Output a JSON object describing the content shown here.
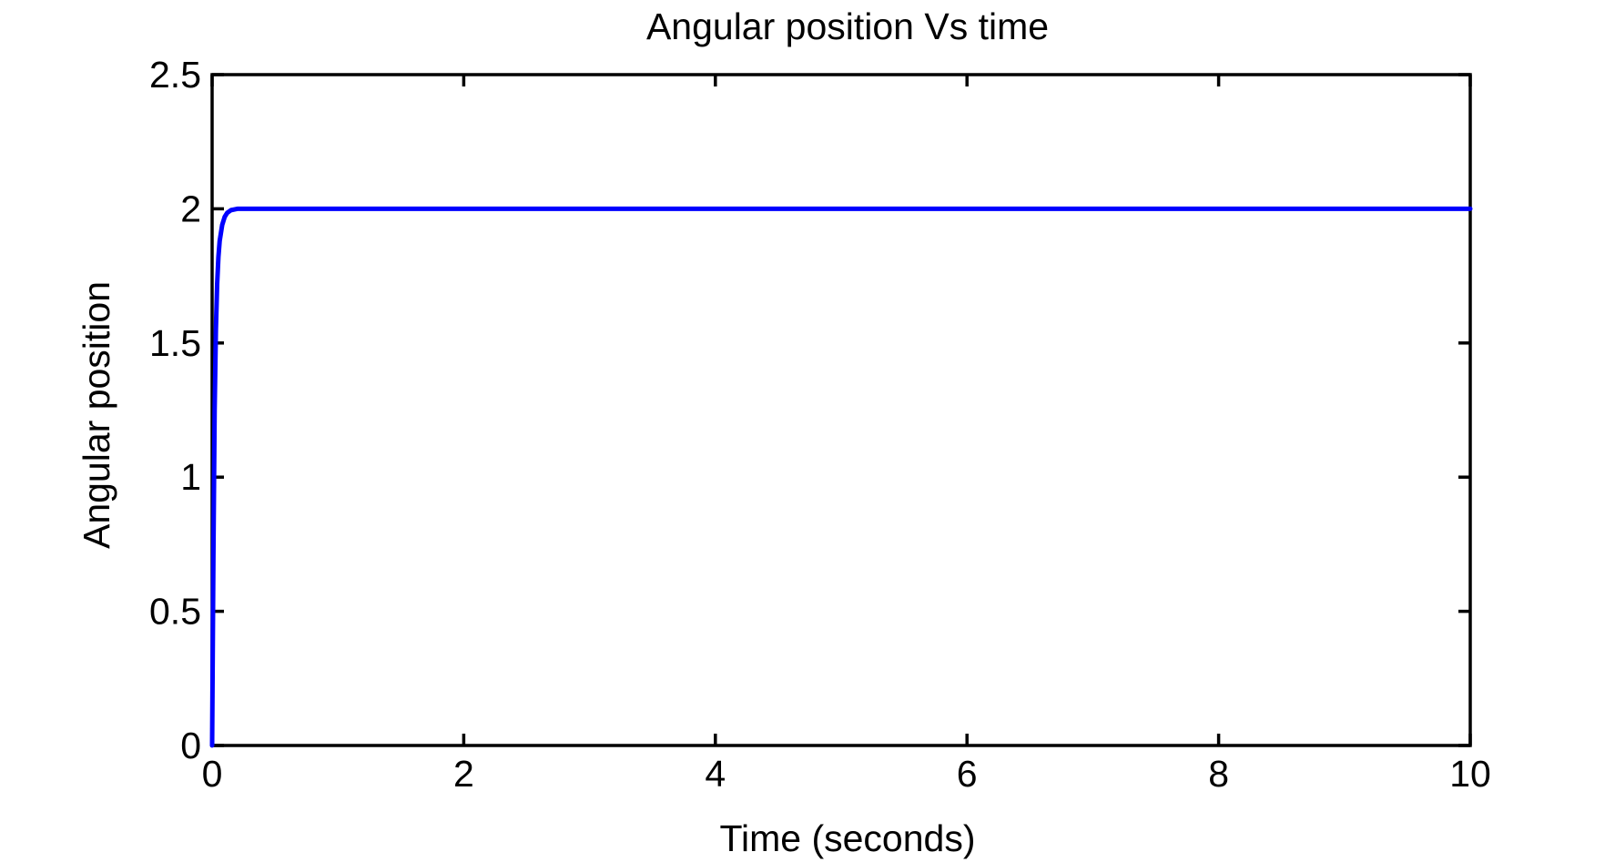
{
  "chart_data": {
    "type": "line",
    "title": "Angular position Vs time",
    "xlabel": "Time (seconds)",
    "ylabel": "Angular position",
    "xlim": [
      0,
      10
    ],
    "ylim": [
      0,
      2.5
    ],
    "x_ticks": [
      0,
      2,
      4,
      6,
      8,
      10
    ],
    "y_ticks": [
      0,
      0.5,
      1,
      1.5,
      2,
      2.5
    ],
    "x_tick_labels": [
      "0",
      "2",
      "4",
      "6",
      "8",
      "10"
    ],
    "y_tick_labels": [
      "0",
      "0.5",
      "1",
      "1.5",
      "2",
      "2.5"
    ],
    "grid": false,
    "legend": "none",
    "series": [
      {
        "color": "#0000ff",
        "x": [
          0,
          0.01,
          0.02,
          0.03,
          0.04,
          0.05,
          0.06,
          0.08,
          0.1,
          0.12,
          0.15,
          0.2,
          0.25,
          0.3,
          0.5,
          1,
          2,
          4,
          6,
          8,
          10
        ],
        "y": [
          0,
          0.7,
          1.25,
          1.55,
          1.72,
          1.82,
          1.88,
          1.94,
          1.97,
          1.985,
          1.995,
          2.0,
          2.0,
          2.0,
          2.0,
          2.0,
          2.0,
          2.0,
          2.0,
          2.0,
          2.0
        ]
      }
    ]
  }
}
